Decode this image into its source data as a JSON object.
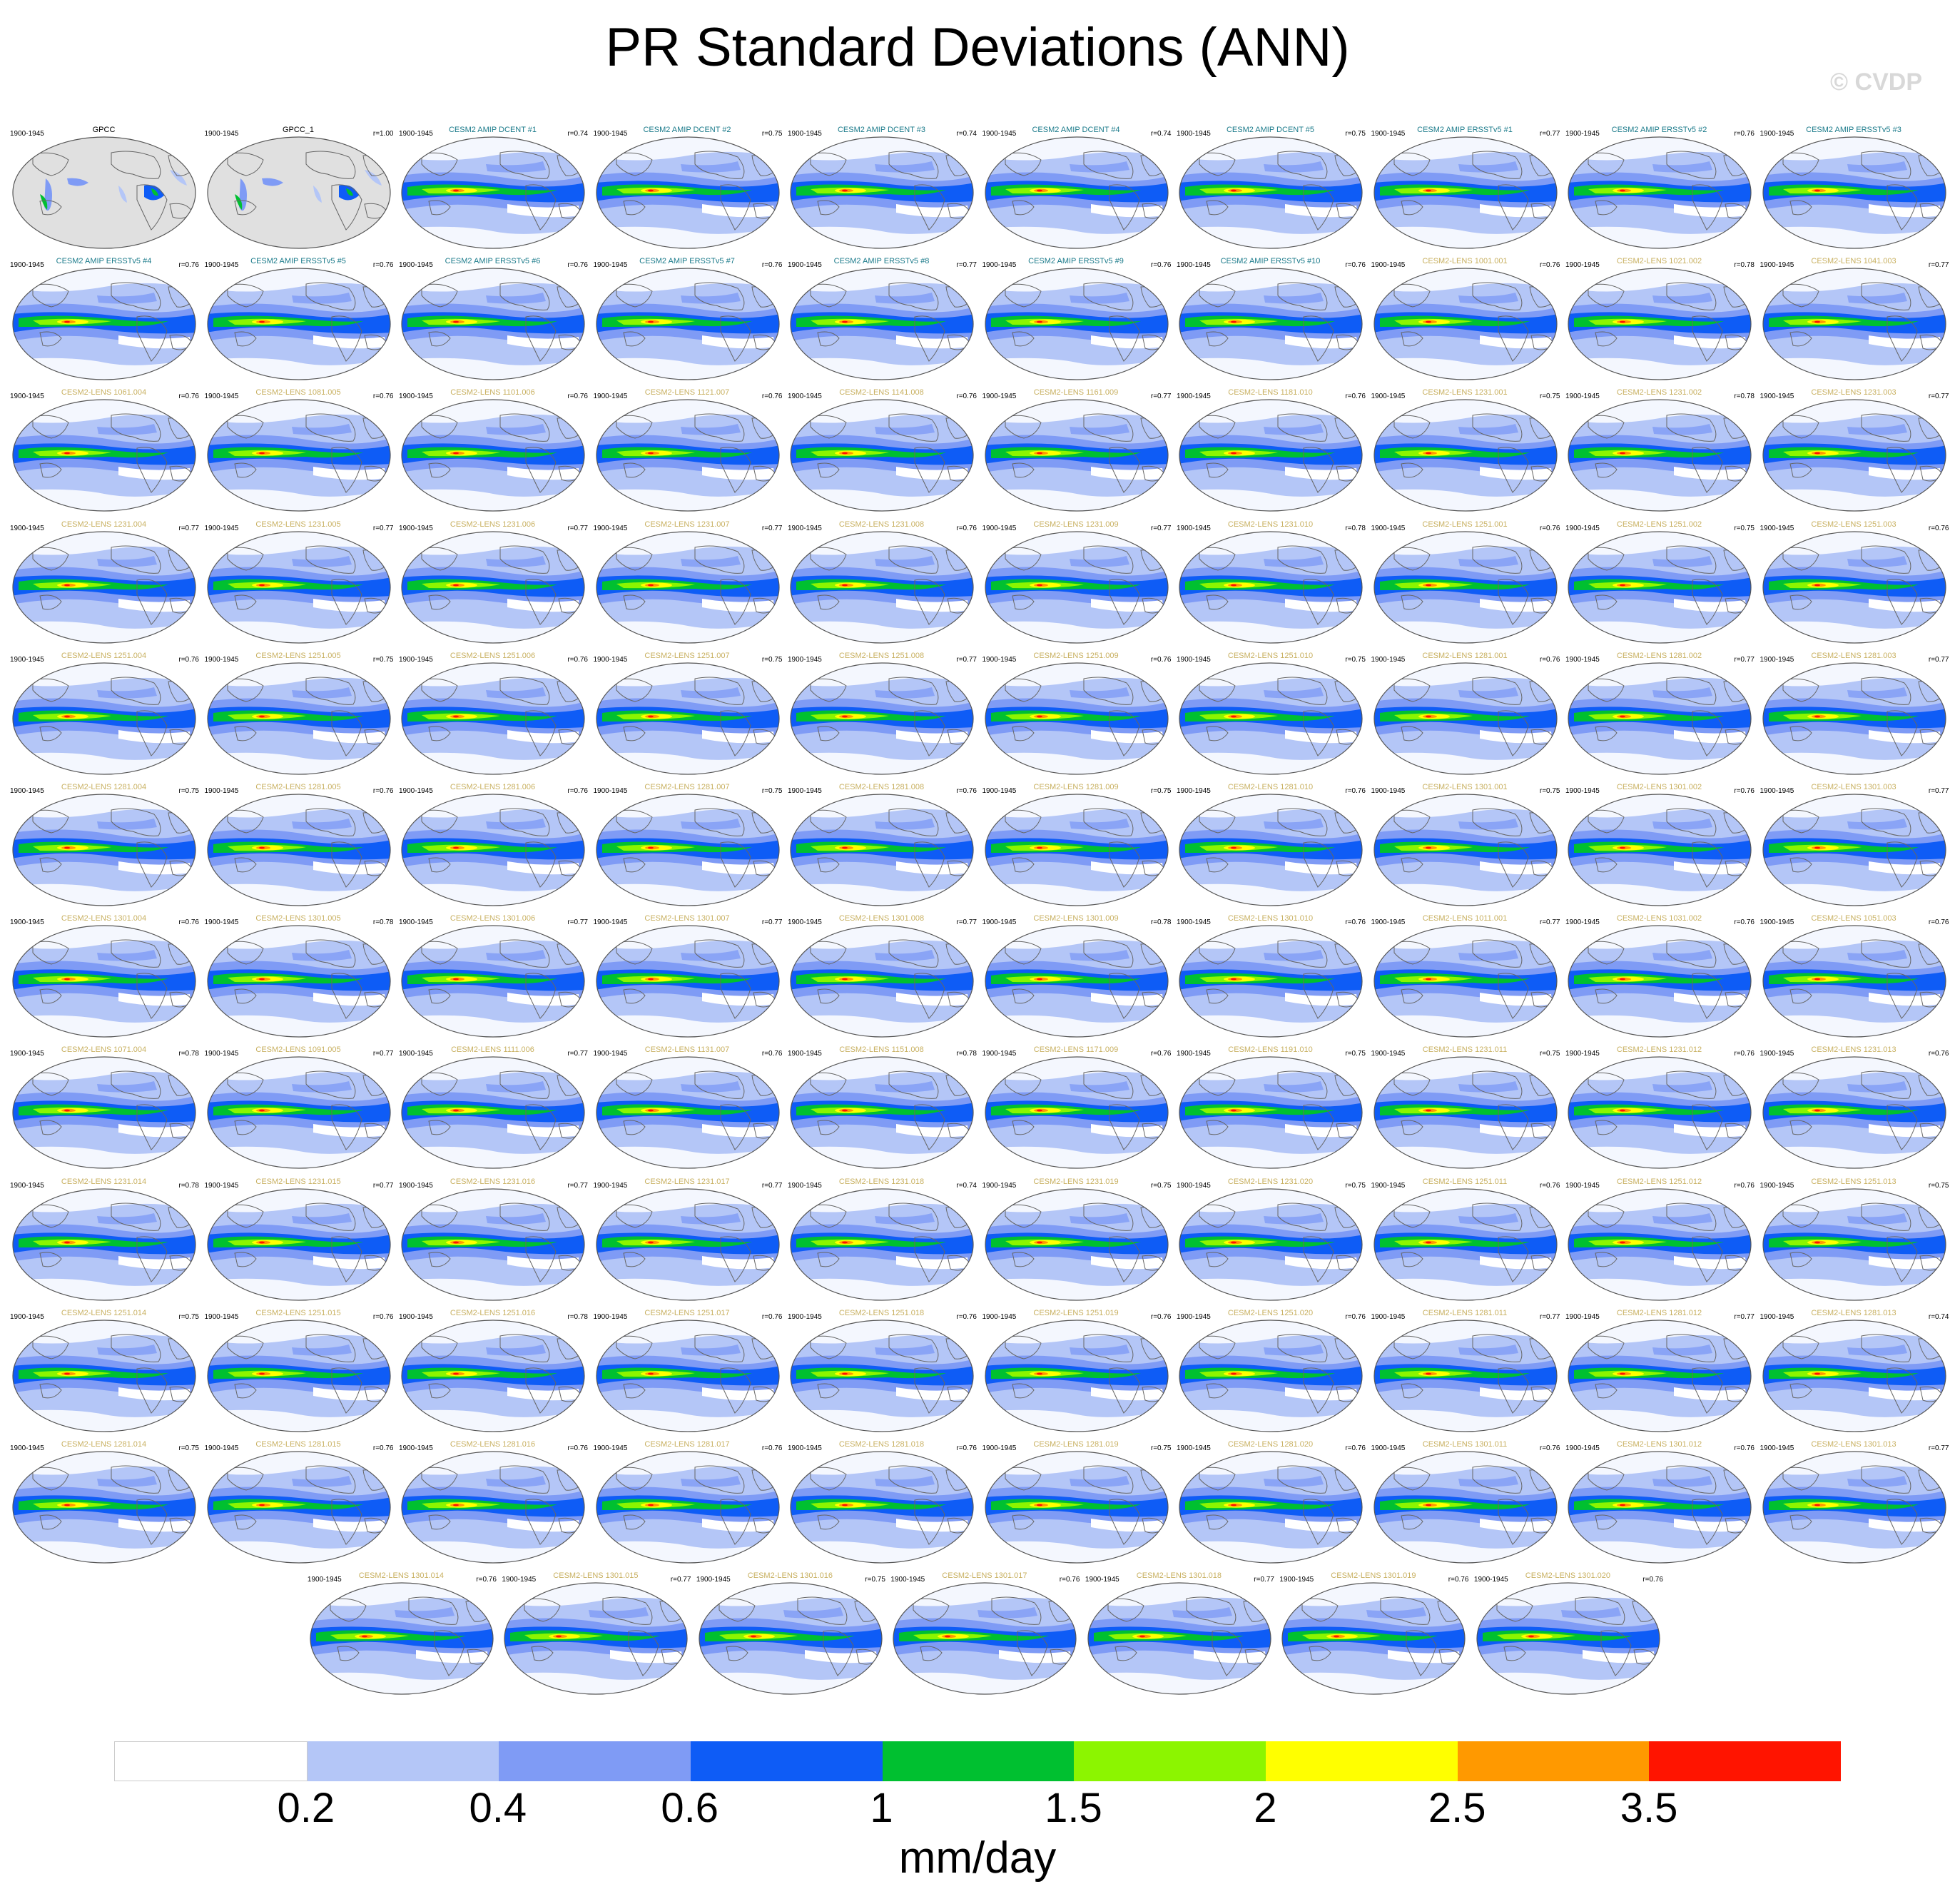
{
  "title": "PR Standard Deviations (ANN)",
  "watermark": "© CVDP",
  "period": "1900-1945",
  "units": "mm/day",
  "colorbar": {
    "colors": [
      "#ffffff",
      "#b4c6f7",
      "#7f9bf5",
      "#0e5cf6",
      "#00c030",
      "#8cf500",
      "#ffff00",
      "#ff9900",
      "#ff1400"
    ],
    "ticks": [
      "0.2",
      "0.4",
      "0.6",
      "1",
      "1.5",
      "2",
      "2.5",
      "3.5"
    ]
  },
  "land_color": "#e0e0e0",
  "panels": [
    {
      "title": "GPCC",
      "r": ""
    },
    {
      "title": "GPCC_1",
      "r": "r=1.00"
    },
    {
      "title": "CESM2 AMIP DCENT #1",
      "r": "r=0.74"
    },
    {
      "title": "CESM2 AMIP DCENT #2",
      "r": "r=0.75"
    },
    {
      "title": "CESM2 AMIP DCENT #3",
      "r": "r=0.74"
    },
    {
      "title": "CESM2 AMIP DCENT #4",
      "r": "r=0.74"
    },
    {
      "title": "CESM2 AMIP DCENT #5",
      "r": "r=0.75"
    },
    {
      "title": "CESM2 AMIP ERSSTv5 #1",
      "r": "r=0.77"
    },
    {
      "title": "CESM2 AMIP ERSSTv5 #2",
      "r": "r=0.76"
    },
    {
      "title": "CESM2 AMIP ERSSTv5 #3",
      "r": ""
    },
    {
      "title": "CESM2 AMIP ERSSTv5 #4",
      "r": "r=0.76"
    },
    {
      "title": "CESM2 AMIP ERSSTv5 #5",
      "r": "r=0.76"
    },
    {
      "title": "CESM2 AMIP ERSSTv5 #6",
      "r": "r=0.76"
    },
    {
      "title": "CESM2 AMIP ERSSTv5 #7",
      "r": "r=0.76"
    },
    {
      "title": "CESM2 AMIP ERSSTv5 #8",
      "r": "r=0.77"
    },
    {
      "title": "CESM2 AMIP ERSSTv5 #9",
      "r": "r=0.76"
    },
    {
      "title": "CESM2 AMIP ERSSTv5 #10",
      "r": "r=0.76"
    },
    {
      "title": "CESM2-LENS 1001.001",
      "r": "r=0.76"
    },
    {
      "title": "CESM2-LENS 1021.002",
      "r": "r=0.78"
    },
    {
      "title": "CESM2-LENS 1041.003",
      "r": "r=0.77"
    },
    {
      "title": "CESM2-LENS 1061.004",
      "r": "r=0.76"
    },
    {
      "title": "CESM2-LENS 1081.005",
      "r": "r=0.76"
    },
    {
      "title": "CESM2-LENS 1101.006",
      "r": "r=0.76"
    },
    {
      "title": "CESM2-LENS 1121.007",
      "r": "r=0.76"
    },
    {
      "title": "CESM2-LENS 1141.008",
      "r": "r=0.76"
    },
    {
      "title": "CESM2-LENS 1161.009",
      "r": "r=0.77"
    },
    {
      "title": "CESM2-LENS 1181.010",
      "r": "r=0.76"
    },
    {
      "title": "CESM2-LENS 1231.001",
      "r": "r=0.75"
    },
    {
      "title": "CESM2-LENS 1231.002",
      "r": "r=0.78"
    },
    {
      "title": "CESM2-LENS 1231.003",
      "r": "r=0.77"
    },
    {
      "title": "CESM2-LENS 1231.004",
      "r": "r=0.77"
    },
    {
      "title": "CESM2-LENS 1231.005",
      "r": "r=0.77"
    },
    {
      "title": "CESM2-LENS 1231.006",
      "r": "r=0.77"
    },
    {
      "title": "CESM2-LENS 1231.007",
      "r": "r=0.77"
    },
    {
      "title": "CESM2-LENS 1231.008",
      "r": "r=0.76"
    },
    {
      "title": "CESM2-LENS 1231.009",
      "r": "r=0.77"
    },
    {
      "title": "CESM2-LENS 1231.010",
      "r": "r=0.78"
    },
    {
      "title": "CESM2-LENS 1251.001",
      "r": "r=0.76"
    },
    {
      "title": "CESM2-LENS 1251.002",
      "r": "r=0.75"
    },
    {
      "title": "CESM2-LENS 1251.003",
      "r": "r=0.76"
    },
    {
      "title": "CESM2-LENS 1251.004",
      "r": "r=0.76"
    },
    {
      "title": "CESM2-LENS 1251.005",
      "r": "r=0.75"
    },
    {
      "title": "CESM2-LENS 1251.006",
      "r": "r=0.76"
    },
    {
      "title": "CESM2-LENS 1251.007",
      "r": "r=0.75"
    },
    {
      "title": "CESM2-LENS 1251.008",
      "r": "r=0.77"
    },
    {
      "title": "CESM2-LENS 1251.009",
      "r": "r=0.76"
    },
    {
      "title": "CESM2-LENS 1251.010",
      "r": "r=0.75"
    },
    {
      "title": "CESM2-LENS 1281.001",
      "r": "r=0.76"
    },
    {
      "title": "CESM2-LENS 1281.002",
      "r": "r=0.77"
    },
    {
      "title": "CESM2-LENS 1281.003",
      "r": "r=0.77"
    },
    {
      "title": "CESM2-LENS 1281.004",
      "r": "r=0.75"
    },
    {
      "title": "CESM2-LENS 1281.005",
      "r": "r=0.76"
    },
    {
      "title": "CESM2-LENS 1281.006",
      "r": "r=0.76"
    },
    {
      "title": "CESM2-LENS 1281.007",
      "r": "r=0.75"
    },
    {
      "title": "CESM2-LENS 1281.008",
      "r": "r=0.76"
    },
    {
      "title": "CESM2-LENS 1281.009",
      "r": "r=0.75"
    },
    {
      "title": "CESM2-LENS 1281.010",
      "r": "r=0.76"
    },
    {
      "title": "CESM2-LENS 1301.001",
      "r": "r=0.75"
    },
    {
      "title": "CESM2-LENS 1301.002",
      "r": "r=0.76"
    },
    {
      "title": "CESM2-LENS 1301.003",
      "r": "r=0.77"
    },
    {
      "title": "CESM2-LENS 1301.004",
      "r": "r=0.76"
    },
    {
      "title": "CESM2-LENS 1301.005",
      "r": "r=0.78"
    },
    {
      "title": "CESM2-LENS 1301.006",
      "r": "r=0.77"
    },
    {
      "title": "CESM2-LENS 1301.007",
      "r": "r=0.77"
    },
    {
      "title": "CESM2-LENS 1301.008",
      "r": "r=0.77"
    },
    {
      "title": "CESM2-LENS 1301.009",
      "r": "r=0.78"
    },
    {
      "title": "CESM2-LENS 1301.010",
      "r": "r=0.76"
    },
    {
      "title": "CESM2-LENS 1011.001",
      "r": "r=0.77"
    },
    {
      "title": "CESM2-LENS 1031.002",
      "r": "r=0.76"
    },
    {
      "title": "CESM2-LENS 1051.003",
      "r": "r=0.76"
    },
    {
      "title": "CESM2-LENS 1071.004",
      "r": "r=0.78"
    },
    {
      "title": "CESM2-LENS 1091.005",
      "r": "r=0.77"
    },
    {
      "title": "CESM2-LENS 1111.006",
      "r": "r=0.77"
    },
    {
      "title": "CESM2-LENS 1131.007",
      "r": "r=0.76"
    },
    {
      "title": "CESM2-LENS 1151.008",
      "r": "r=0.78"
    },
    {
      "title": "CESM2-LENS 1171.009",
      "r": "r=0.76"
    },
    {
      "title": "CESM2-LENS 1191.010",
      "r": "r=0.75"
    },
    {
      "title": "CESM2-LENS 1231.011",
      "r": "r=0.75"
    },
    {
      "title": "CESM2-LENS 1231.012",
      "r": "r=0.76"
    },
    {
      "title": "CESM2-LENS 1231.013",
      "r": "r=0.76"
    },
    {
      "title": "CESM2-LENS 1231.014",
      "r": "r=0.78"
    },
    {
      "title": "CESM2-LENS 1231.015",
      "r": "r=0.77"
    },
    {
      "title": "CESM2-LENS 1231.016",
      "r": "r=0.77"
    },
    {
      "title": "CESM2-LENS 1231.017",
      "r": "r=0.77"
    },
    {
      "title": "CESM2-LENS 1231.018",
      "r": "r=0.74"
    },
    {
      "title": "CESM2-LENS 1231.019",
      "r": "r=0.75"
    },
    {
      "title": "CESM2-LENS 1231.020",
      "r": "r=0.75"
    },
    {
      "title": "CESM2-LENS 1251.011",
      "r": "r=0.76"
    },
    {
      "title": "CESM2-LENS 1251.012",
      "r": "r=0.76"
    },
    {
      "title": "CESM2-LENS 1251.013",
      "r": "r=0.75"
    },
    {
      "title": "CESM2-LENS 1251.014",
      "r": "r=0.75"
    },
    {
      "title": "CESM2-LENS 1251.015",
      "r": "r=0.76"
    },
    {
      "title": "CESM2-LENS 1251.016",
      "r": "r=0.78"
    },
    {
      "title": "CESM2-LENS 1251.017",
      "r": "r=0.76"
    },
    {
      "title": "CESM2-LENS 1251.018",
      "r": "r=0.76"
    },
    {
      "title": "CESM2-LENS 1251.019",
      "r": "r=0.76"
    },
    {
      "title": "CESM2-LENS 1251.020",
      "r": "r=0.76"
    },
    {
      "title": "CESM2-LENS 1281.011",
      "r": "r=0.77"
    },
    {
      "title": "CESM2-LENS 1281.012",
      "r": "r=0.77"
    },
    {
      "title": "CESM2-LENS 1281.013",
      "r": "r=0.74"
    },
    {
      "title": "CESM2-LENS 1281.014",
      "r": "r=0.75"
    },
    {
      "title": "CESM2-LENS 1281.015",
      "r": "r=0.76"
    },
    {
      "title": "CESM2-LENS 1281.016",
      "r": "r=0.76"
    },
    {
      "title": "CESM2-LENS 1281.017",
      "r": "r=0.76"
    },
    {
      "title": "CESM2-LENS 1281.018",
      "r": "r=0.76"
    },
    {
      "title": "CESM2-LENS 1281.019",
      "r": "r=0.75"
    },
    {
      "title": "CESM2-LENS 1281.020",
      "r": "r=0.76"
    },
    {
      "title": "CESM2-LENS 1301.011",
      "r": "r=0.76"
    },
    {
      "title": "CESM2-LENS 1301.012",
      "r": "r=0.76"
    },
    {
      "title": "CESM2-LENS 1301.013",
      "r": "r=0.77"
    },
    {
      "title": "CESM2-LENS 1301.014",
      "r": "r=0.76"
    },
    {
      "title": "CESM2-LENS 1301.015",
      "r": "r=0.77"
    },
    {
      "title": "CESM2-LENS 1301.016",
      "r": "r=0.75"
    },
    {
      "title": "CESM2-LENS 1301.017",
      "r": "r=0.76"
    },
    {
      "title": "CESM2-LENS 1301.018",
      "r": "r=0.77"
    },
    {
      "title": "CESM2-LENS 1301.019",
      "r": "r=0.76"
    },
    {
      "title": "CESM2-LENS 1301.020",
      "r": "r=0.76"
    }
  ]
}
